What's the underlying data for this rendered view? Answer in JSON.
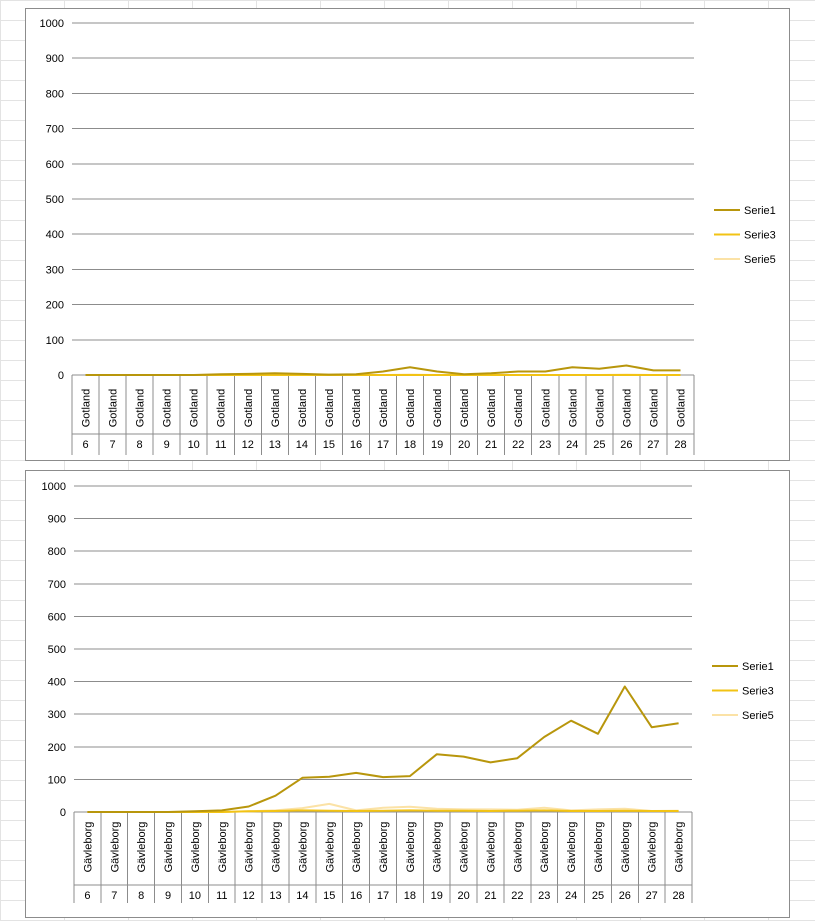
{
  "chart_data": [
    {
      "type": "line",
      "categories": [
        "6",
        "7",
        "8",
        "9",
        "10",
        "11",
        "12",
        "13",
        "14",
        "15",
        "16",
        "17",
        "18",
        "19",
        "20",
        "21",
        "22",
        "23",
        "24",
        "25",
        "26",
        "27",
        "28"
      ],
      "category_group": "Gotland",
      "yticks": [
        "0",
        "100",
        "200",
        "300",
        "400",
        "500",
        "600",
        "700",
        "800",
        "900",
        "1000"
      ],
      "ylim": [
        0,
        1000
      ],
      "grid": true,
      "legend": "right",
      "series": [
        {
          "name": "Serie1",
          "color": "#b8960c",
          "values": [
            0,
            0,
            0,
            0,
            0,
            2,
            3,
            5,
            3,
            1,
            2,
            10,
            22,
            10,
            2,
            5,
            10,
            10,
            22,
            18,
            27,
            13,
            13
          ]
        },
        {
          "name": "Serie3",
          "color": "#f2c314",
          "values": [
            0,
            0,
            0,
            0,
            0,
            0,
            0,
            0,
            0,
            0,
            0,
            0,
            0,
            0,
            0,
            0,
            0,
            0,
            0,
            0,
            0,
            0,
            0
          ]
        },
        {
          "name": "Serie5",
          "color": "#fbe2a6",
          "values": [
            0,
            0,
            0,
            0,
            0,
            0,
            1,
            0,
            0,
            1,
            0,
            0,
            1,
            0,
            0,
            0,
            0,
            0,
            0,
            0,
            1,
            0,
            0
          ]
        }
      ]
    },
    {
      "type": "line",
      "categories": [
        "6",
        "7",
        "8",
        "9",
        "10",
        "11",
        "12",
        "13",
        "14",
        "15",
        "16",
        "17",
        "18",
        "19",
        "20",
        "21",
        "22",
        "23",
        "24",
        "25",
        "26",
        "27",
        "28"
      ],
      "category_group": "Gävleborg",
      "yticks": [
        "0",
        "100",
        "200",
        "300",
        "400",
        "500",
        "600",
        "700",
        "800",
        "900",
        "1000"
      ],
      "ylim": [
        0,
        1000
      ],
      "grid": true,
      "legend": "right",
      "series": [
        {
          "name": "Serie1",
          "color": "#b8960c",
          "values": [
            0,
            0,
            0,
            0,
            2,
            5,
            17,
            50,
            105,
            108,
            120,
            107,
            110,
            177,
            170,
            152,
            165,
            230,
            280,
            240,
            385,
            260,
            272
          ]
        },
        {
          "name": "Serie3",
          "color": "#f2c314",
          "values": [
            0,
            0,
            0,
            0,
            0,
            0,
            2,
            3,
            5,
            4,
            3,
            4,
            5,
            4,
            4,
            3,
            4,
            5,
            3,
            3,
            4,
            3,
            3
          ]
        },
        {
          "name": "Serie5",
          "color": "#fbe2a6",
          "values": [
            0,
            0,
            0,
            0,
            0,
            0,
            2,
            5,
            12,
            25,
            5,
            13,
            16,
            10,
            8,
            8,
            7,
            13,
            5,
            8,
            10,
            3,
            4
          ]
        }
      ]
    }
  ]
}
